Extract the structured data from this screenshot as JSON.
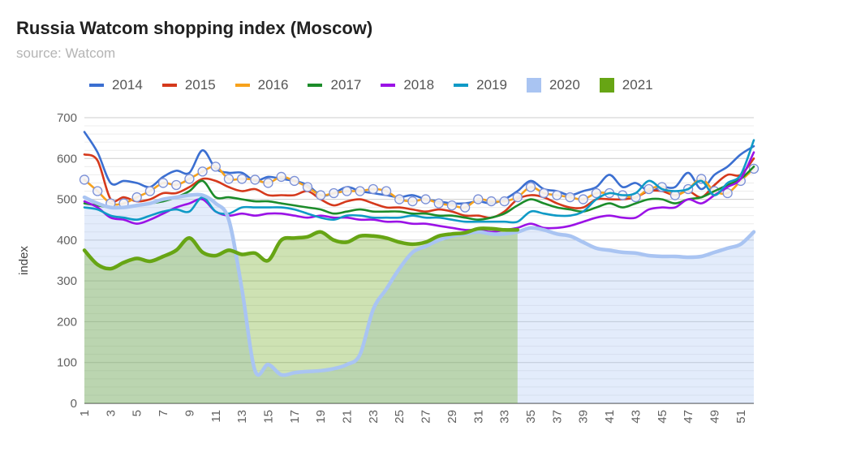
{
  "title": "Russia Watcom shopping index (Moscow)",
  "subtitle": "source: Watcom",
  "colors": {
    "2014": "#3b6fd1",
    "2015": "#d5391c",
    "2016": "#f7a21c",
    "2017": "#1c8c2a",
    "2018": "#9b12e6",
    "2019": "#0f9ac6",
    "2020": "#a9c4f2",
    "2021": "#67a514"
  },
  "chart_data": {
    "type": "line",
    "ylabel": "index",
    "xlabel": "",
    "ylim": [
      0,
      700
    ],
    "yticks": [
      0,
      100,
      200,
      300,
      400,
      500,
      600,
      700
    ],
    "xlim": [
      1,
      52
    ],
    "xticks": [
      1,
      3,
      5,
      7,
      9,
      11,
      13,
      15,
      17,
      19,
      21,
      23,
      25,
      27,
      29,
      31,
      33,
      35,
      37,
      39,
      41,
      43,
      45,
      47,
      49,
      51
    ],
    "legend_position": "top",
    "grid": true,
    "series": [
      {
        "name": "2014",
        "kind": "line",
        "markers": false,
        "values": [
          665,
          615,
          540,
          545,
          540,
          530,
          555,
          570,
          565,
          620,
          575,
          565,
          565,
          545,
          555,
          550,
          545,
          535,
          510,
          515,
          530,
          520,
          515,
          510,
          505,
          510,
          500,
          495,
          490,
          490,
          495,
          490,
          500,
          520,
          545,
          525,
          520,
          510,
          520,
          530,
          560,
          530,
          540,
          520,
          530,
          530,
          565,
          525,
          560,
          580,
          610,
          630
        ]
      },
      {
        "name": "2015",
        "kind": "line",
        "markers": false,
        "values": [
          610,
          595,
          500,
          505,
          495,
          500,
          515,
          515,
          530,
          550,
          545,
          530,
          520,
          525,
          510,
          510,
          510,
          520,
          500,
          485,
          495,
          500,
          490,
          480,
          480,
          475,
          470,
          475,
          470,
          460,
          460,
          455,
          470,
          500,
          510,
          505,
          490,
          480,
          480,
          500,
          500,
          500,
          505,
          520,
          520,
          510,
          520,
          505,
          535,
          560,
          560,
          600
        ]
      },
      {
        "name": "2016",
        "kind": "line",
        "markers": true,
        "values": [
          548,
          520,
          490,
          490,
          505,
          520,
          540,
          535,
          550,
          568,
          580,
          550,
          550,
          548,
          540,
          555,
          545,
          530,
          510,
          515,
          520,
          520,
          525,
          520,
          500,
          495,
          500,
          490,
          485,
          480,
          500,
          495,
          495,
          505,
          530,
          515,
          510,
          505,
          500,
          515,
          515,
          510,
          505,
          525,
          530,
          510,
          525,
          550,
          520,
          515,
          545,
          575
        ]
      },
      {
        "name": "2017",
        "kind": "line",
        "markers": false,
        "values": [
          490,
          485,
          480,
          480,
          485,
          490,
          495,
          505,
          520,
          545,
          505,
          505,
          500,
          495,
          495,
          490,
          485,
          480,
          475,
          465,
          470,
          475,
          470,
          470,
          470,
          465,
          465,
          460,
          460,
          455,
          450,
          455,
          465,
          485,
          500,
          490,
          480,
          475,
          470,
          480,
          490,
          480,
          490,
          500,
          500,
          490,
          500,
          505,
          520,
          535,
          550,
          580
        ]
      },
      {
        "name": "2018",
        "kind": "line",
        "markers": false,
        "values": [
          495,
          480,
          455,
          450,
          440,
          450,
          465,
          480,
          490,
          500,
          470,
          460,
          465,
          460,
          465,
          465,
          460,
          455,
          460,
          455,
          455,
          450,
          450,
          445,
          445,
          440,
          440,
          435,
          430,
          425,
          425,
          420,
          425,
          430,
          440,
          430,
          430,
          435,
          445,
          455,
          460,
          455,
          455,
          475,
          480,
          480,
          500,
          490,
          510,
          530,
          550,
          615
        ]
      },
      {
        "name": "2019",
        "kind": "line",
        "markers": false,
        "values": [
          480,
          475,
          460,
          455,
          450,
          460,
          470,
          475,
          470,
          505,
          470,
          465,
          480,
          480,
          480,
          480,
          475,
          465,
          455,
          450,
          460,
          460,
          455,
          455,
          455,
          460,
          455,
          455,
          450,
          445,
          445,
          445,
          445,
          445,
          470,
          465,
          460,
          460,
          470,
          500,
          515,
          510,
          515,
          545,
          525,
          520,
          525,
          545,
          510,
          540,
          560,
          645
        ]
      },
      {
        "name": "2020",
        "kind": "area",
        "markers": false,
        "values": [
          505,
          490,
          480,
          480,
          485,
          490,
          500,
          505,
          510,
          510,
          490,
          450,
          280,
          80,
          95,
          70,
          75,
          78,
          80,
          85,
          95,
          120,
          230,
          280,
          330,
          370,
          385,
          400,
          410,
          415,
          420,
          415,
          415,
          420,
          430,
          425,
          415,
          410,
          395,
          380,
          375,
          370,
          368,
          362,
          360,
          360,
          358,
          360,
          370,
          380,
          390,
          420
        ]
      },
      {
        "name": "2021",
        "kind": "area",
        "markers": false,
        "values": [
          375,
          340,
          330,
          345,
          355,
          348,
          360,
          375,
          405,
          370,
          362,
          375,
          365,
          368,
          350,
          400,
          405,
          408,
          420,
          400,
          395,
          410,
          410,
          405,
          395,
          390,
          395,
          410,
          415,
          418,
          428,
          428,
          425,
          425
        ]
      }
    ]
  }
}
